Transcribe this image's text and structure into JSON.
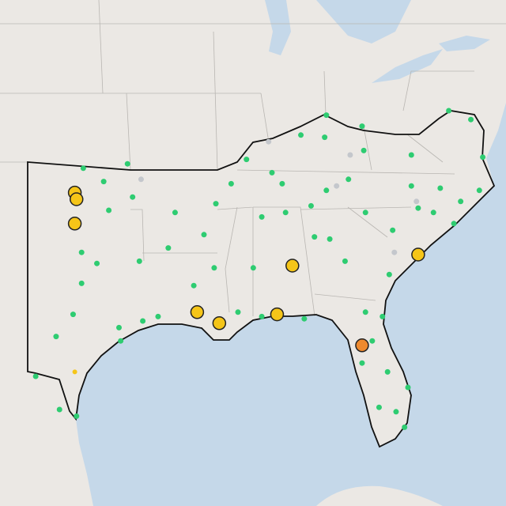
{
  "markers": [
    {
      "color": "#2ecc71",
      "points": [
        [
          -99.7,
          36.7
        ],
        [
          -98.5,
          36.1
        ],
        [
          -97.1,
          36.9
        ],
        [
          -96.8,
          35.4
        ],
        [
          -98.2,
          34.8
        ],
        [
          -99.8,
          32.9
        ],
        [
          -98.9,
          32.4
        ],
        [
          -99.8,
          31.5
        ],
        [
          -100.3,
          30.1
        ],
        [
          -101.3,
          29.1
        ],
        [
          -97.6,
          29.5
        ],
        [
          -96.2,
          29.8
        ],
        [
          -96.4,
          32.5
        ],
        [
          -94.7,
          33.1
        ],
        [
          -94.3,
          34.7
        ],
        [
          -92.6,
          33.7
        ],
        [
          -92.0,
          32.2
        ],
        [
          -91.9,
          35.1
        ],
        [
          -91.0,
          36.0
        ],
        [
          -90.1,
          37.1
        ],
        [
          -88.6,
          36.5
        ],
        [
          -88.0,
          36.0
        ],
        [
          -86.9,
          38.2
        ],
        [
          -85.4,
          39.1
        ],
        [
          -85.5,
          38.1
        ],
        [
          -83.3,
          38.6
        ],
        [
          -83.2,
          37.5
        ],
        [
          -80.4,
          37.3
        ],
        [
          -78.2,
          39.3
        ],
        [
          -76.9,
          38.9
        ],
        [
          -76.2,
          37.2
        ],
        [
          -76.4,
          35.7
        ],
        [
          -77.5,
          35.2
        ],
        [
          -78.7,
          35.8
        ],
        [
          -79.1,
          34.7
        ],
        [
          -77.9,
          34.2
        ],
        [
          -81.5,
          33.9
        ],
        [
          -83.1,
          34.7
        ],
        [
          -84.1,
          36.2
        ],
        [
          -85.4,
          35.7
        ],
        [
          -86.3,
          35.0
        ],
        [
          -87.8,
          34.7
        ],
        [
          -89.2,
          34.5
        ],
        [
          -89.7,
          32.2
        ],
        [
          -90.6,
          30.2
        ],
        [
          -93.2,
          31.4
        ],
        [
          -95.3,
          30.0
        ],
        [
          -86.1,
          33.6
        ],
        [
          -84.3,
          32.5
        ],
        [
          -81.7,
          31.9
        ],
        [
          -82.1,
          30.0
        ],
        [
          -83.1,
          30.2
        ],
        [
          -82.7,
          28.9
        ],
        [
          -83.3,
          27.9
        ],
        [
          -81.8,
          27.5
        ],
        [
          -80.6,
          26.8
        ],
        [
          -81.3,
          25.7
        ],
        [
          -80.8,
          25.0
        ],
        [
          -82.3,
          25.9
        ],
        [
          -85.2,
          33.5
        ],
        [
          -80.4,
          35.9
        ],
        [
          -80.0,
          34.9
        ],
        [
          -89.2,
          30.0
        ],
        [
          -86.7,
          29.9
        ],
        [
          -102.5,
          27.3
        ],
        [
          -101.1,
          25.8
        ],
        [
          -100.1,
          25.5
        ],
        [
          -97.5,
          28.9
        ]
      ]
    },
    {
      "color": "#c4c7cc",
      "points": [
        [
          -96.3,
          36.2
        ],
        [
          -88.8,
          37.9
        ],
        [
          -84.0,
          37.3
        ],
        [
          -80.1,
          35.2
        ],
        [
          -81.4,
          32.9
        ],
        [
          -84.8,
          35.9
        ]
      ]
    },
    {
      "color": "#f5c518",
      "points": [
        [
          -100.2,
          35.6
        ],
        [
          -100.1,
          35.3
        ],
        [
          -100.2,
          34.2
        ],
        [
          -93.0,
          30.2
        ],
        [
          -91.7,
          29.7
        ],
        [
          -88.3,
          30.1
        ],
        [
          -87.4,
          32.3
        ],
        [
          -80.0,
          32.8
        ]
      ]
    },
    {
      "color": "#f5c518",
      "points": [
        [
          -100.2,
          27.5
        ]
      ]
    },
    {
      "color": "#ef8a2e",
      "points": [
        [
          -83.3,
          28.7
        ]
      ]
    }
  ]
}
